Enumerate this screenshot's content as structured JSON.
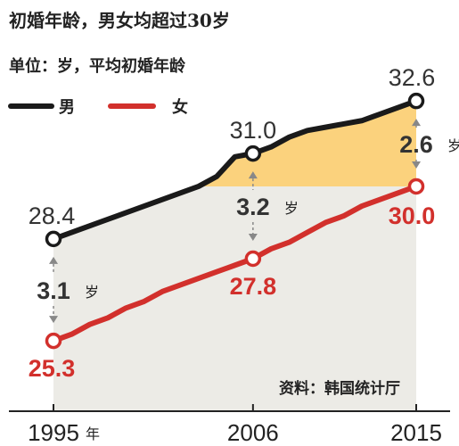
{
  "title": "初婚年龄，男女均超过30岁",
  "subtitle": "单位：岁，平均初婚年龄",
  "source": "资料：韩国统计厅",
  "year_suffix": "年",
  "gap_unit": "岁",
  "colors": {
    "male": "#1a1a1a",
    "female": "#d2302c",
    "gap_fill": "#fbd27d",
    "area_fill": "#ecebe6",
    "arrow": "#888888"
  },
  "chart_data": {
    "type": "line",
    "x_ticks": [
      "1995",
      "2006",
      "2015"
    ],
    "xlim": [
      1995,
      2015
    ],
    "ylim": [
      24,
      33.5
    ],
    "series": [
      {
        "name": "男",
        "color": "#1a1a1a",
        "x": [
          1995,
          1996,
          1997,
          1998,
          1999,
          2000,
          2001,
          2002,
          2003,
          2004,
          2005,
          2006,
          2007,
          2008,
          2009,
          2010,
          2011,
          2012,
          2013,
          2014,
          2015
        ],
        "y": [
          28.4,
          28.6,
          28.8,
          29.0,
          29.2,
          29.4,
          29.6,
          29.8,
          30.0,
          30.3,
          30.9,
          31.0,
          31.2,
          31.5,
          31.7,
          31.8,
          31.9,
          32.0,
          32.2,
          32.4,
          32.6
        ]
      },
      {
        "name": "女",
        "color": "#d2302c",
        "x": [
          1995,
          1996,
          1997,
          1998,
          1999,
          2000,
          2001,
          2002,
          2003,
          2004,
          2005,
          2006,
          2007,
          2008,
          2009,
          2010,
          2011,
          2012,
          2013,
          2014,
          2015
        ],
        "y": [
          25.3,
          25.5,
          25.8,
          26.0,
          26.3,
          26.5,
          26.8,
          27.0,
          27.2,
          27.4,
          27.6,
          27.8,
          28.1,
          28.3,
          28.6,
          28.9,
          29.1,
          29.4,
          29.6,
          29.8,
          30.0
        ]
      }
    ],
    "point_labels": [
      {
        "series": "男",
        "x": 1995,
        "label": "28.4"
      },
      {
        "series": "男",
        "x": 2006,
        "label": "31.0"
      },
      {
        "series": "男",
        "x": 2015,
        "label": "32.6"
      },
      {
        "series": "女",
        "x": 1995,
        "label": "25.3"
      },
      {
        "series": "女",
        "x": 2006,
        "label": "27.8"
      },
      {
        "series": "女",
        "x": 2015,
        "label": "30.0"
      }
    ],
    "gaps": [
      {
        "x": 1995,
        "value": "3.1"
      },
      {
        "x": 2006,
        "value": "3.2"
      },
      {
        "x": 2015,
        "value": "2.6"
      }
    ],
    "legend": {
      "placement": "top-left",
      "entries": [
        "男",
        "女"
      ]
    }
  }
}
